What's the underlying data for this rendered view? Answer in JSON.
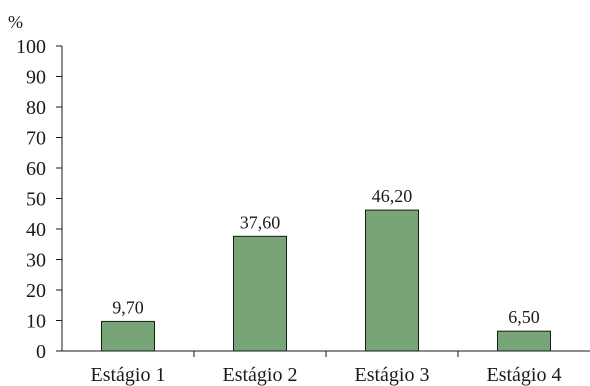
{
  "chart_data": {
    "type": "bar",
    "title": "",
    "xlabel": "",
    "ylabel": "%",
    "ylim": [
      0,
      100
    ],
    "yticks": [
      0,
      10,
      20,
      30,
      40,
      50,
      60,
      70,
      80,
      90,
      100
    ],
    "categories": [
      "Estágio 1",
      "Estágio 2",
      "Estágio 3",
      "Estágio 4"
    ],
    "values": [
      9.7,
      37.6,
      46.2,
      6.5
    ],
    "data_labels": [
      "9,70",
      "37,60",
      "46,20",
      "6,50"
    ],
    "bar_color": "#77a578",
    "bar_edge_color": "#1a1a1a",
    "grid": false,
    "legend": "none"
  }
}
